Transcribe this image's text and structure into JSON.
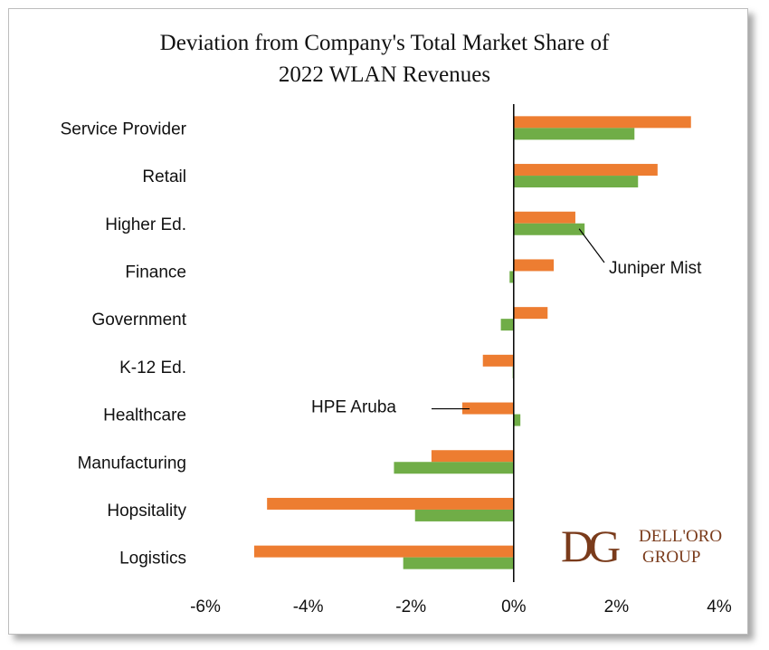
{
  "chart_data": {
    "type": "bar",
    "orientation": "horizontal",
    "title_lines": [
      "Deviation from Company's Total Market Share of",
      "2022 WLAN Revenues"
    ],
    "categories": [
      "Service Provider",
      "Retail",
      "Higher Ed.",
      "Finance",
      "Government",
      "K-12 Ed.",
      "Healthcare",
      "Manufacturing",
      "Hopsitality",
      "Logistics"
    ],
    "series": [
      {
        "name": "HPE Aruba",
        "color": "#ED7D31",
        "values": [
          3.45,
          2.8,
          1.2,
          0.78,
          0.66,
          -0.6,
          -1.0,
          -1.6,
          -4.8,
          -5.05
        ]
      },
      {
        "name": "Juniper Mist",
        "color": "#70AD47",
        "values": [
          2.35,
          2.42,
          1.38,
          -0.08,
          -0.25,
          -0.02,
          0.13,
          -2.33,
          -1.92,
          -2.15
        ]
      }
    ],
    "xlim": [
      -6,
      4
    ],
    "x_ticks": [
      "-6%",
      "-4%",
      "-2%",
      "0%",
      "2%",
      "4%"
    ],
    "legend": "none",
    "grid": false,
    "annotations": [
      {
        "text": "Juniper Mist",
        "series": "Juniper Mist",
        "category": "Higher Ed."
      },
      {
        "text": "HPE Aruba",
        "series": "HPE Aruba",
        "category": "Healthcare"
      }
    ]
  },
  "logo": {
    "mark": "DG",
    "line1": "DELL'ORO",
    "line2": "GROUP",
    "color": "#7a3b1b"
  }
}
